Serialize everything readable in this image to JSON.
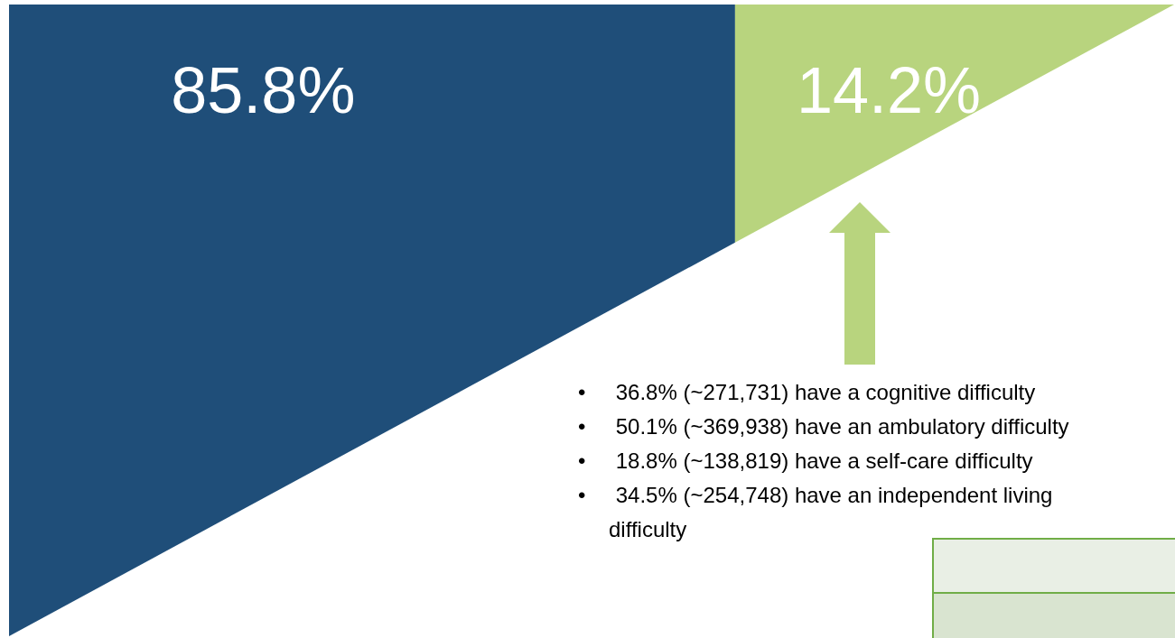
{
  "chart_data": {
    "type": "other",
    "categories": [
      null,
      null
    ],
    "values": [
      85.8,
      14.2
    ],
    "value_labels": [
      "85.8%",
      "14.2%"
    ],
    "colors": [
      "#1f4e79",
      "#b8d47e"
    ],
    "annotations": [
      "• 36.8% (~271,731) have a cognitive difficulty",
      "• 50.1% (~369,938) have an ambulatory difficulty",
      "• 18.8% (~138,819) have a self-care difficulty",
      "• 34.5% (~254,748) have an independent living difficulty"
    ]
  }
}
